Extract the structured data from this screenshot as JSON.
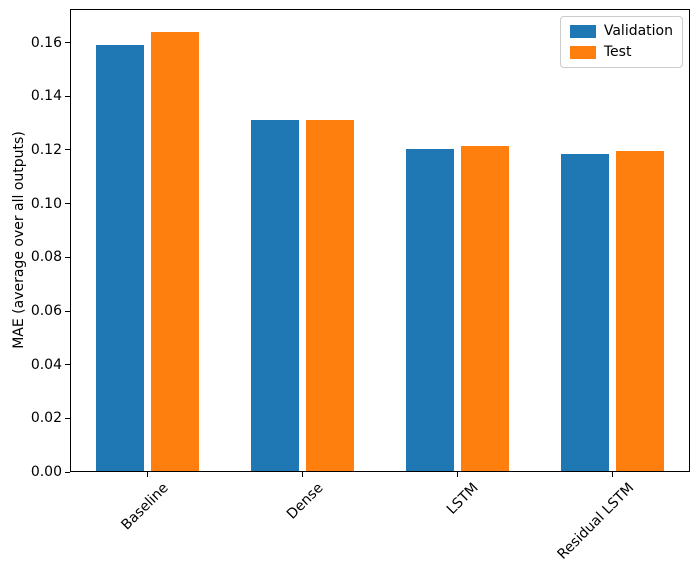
{
  "chart_data": {
    "type": "bar",
    "title": "",
    "xlabel": "",
    "ylabel": "MAE (average over all outputs)",
    "categories": [
      "Baseline",
      "Dense",
      "LSTM",
      "Residual LSTM"
    ],
    "series": [
      {
        "name": "Validation",
        "color": "#1f77b4",
        "values": [
          0.159,
          0.131,
          0.1205,
          0.1185
        ]
      },
      {
        "name": "Test",
        "color": "#ff7f0e",
        "values": [
          0.164,
          0.131,
          0.1215,
          0.1195
        ]
      }
    ],
    "ylim": [
      0,
      0.1725
    ],
    "ytick_values": [
      0.0,
      0.02,
      0.04,
      0.06,
      0.08,
      0.1,
      0.12,
      0.14,
      0.16
    ],
    "ytick_labels": [
      "0.00",
      "0.02",
      "0.04",
      "0.06",
      "0.08",
      "0.10",
      "0.12",
      "0.14",
      "0.16"
    ],
    "x_tick_rotation": 45,
    "grid": false,
    "legend": {
      "position": "upper right",
      "entries": [
        "Validation",
        "Test"
      ]
    }
  }
}
